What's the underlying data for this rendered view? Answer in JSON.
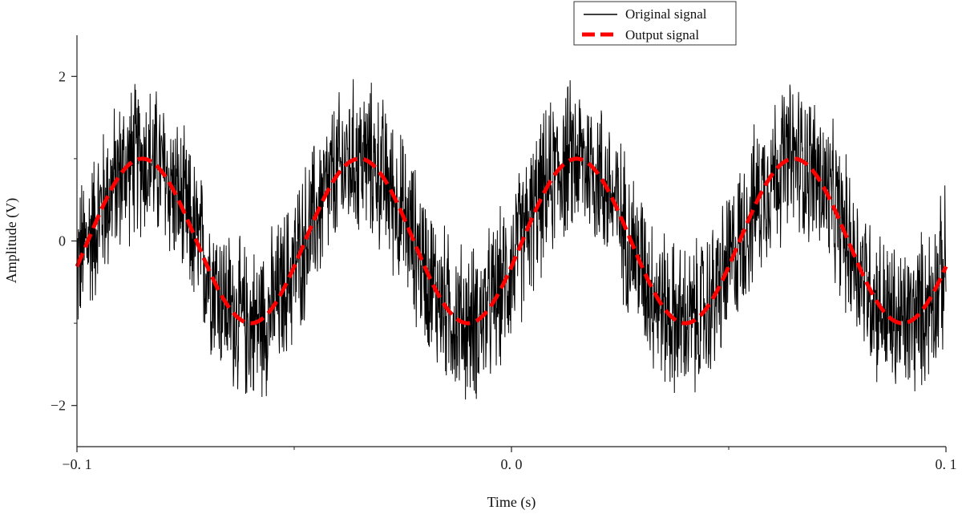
{
  "chart_data": {
    "type": "line",
    "title": "",
    "xlabel": "Time (s)",
    "ylabel": "Amplitude (V)",
    "xlim": [
      -0.1,
      0.1
    ],
    "ylim": [
      -2.5,
      2.5
    ],
    "x_ticks": [
      {
        "value": -0.1,
        "label": "−0. 1"
      },
      {
        "value": 0.0,
        "label": "0. 0"
      },
      {
        "value": 0.1,
        "label": "0. 1"
      }
    ],
    "x_minor_ticks": [
      -0.05,
      0.05
    ],
    "y_ticks": [
      {
        "value": 2,
        "label": "2"
      },
      {
        "value": 0,
        "label": "0"
      },
      {
        "value": -2,
        "label": "−2"
      }
    ],
    "y_minor_ticks": [
      1,
      -1
    ],
    "grid": false,
    "legend_position": "top-right",
    "series": [
      {
        "name": "Original signal",
        "color": "#000000",
        "style": "solid",
        "description_values": {
          "amplitude": 1.0,
          "frequency_hz": 20,
          "noise_peak": 1.1,
          "value_at_xmin": -0.31
        }
      },
      {
        "name": "Output signal",
        "color": "#ff0000",
        "style": "dashed",
        "x": [
          -0.1,
          -0.095,
          -0.09,
          -0.085,
          -0.08,
          -0.075,
          -0.07,
          -0.065,
          -0.06,
          -0.055,
          -0.05,
          -0.045,
          -0.04,
          -0.035,
          -0.03,
          -0.025,
          -0.02,
          -0.015,
          -0.01,
          -0.005,
          0.0,
          0.005,
          0.01,
          0.015,
          0.02,
          0.025,
          0.03,
          0.035,
          0.04,
          0.045,
          0.05,
          0.055,
          0.06,
          0.065,
          0.07,
          0.075,
          0.08,
          0.085,
          0.09,
          0.095,
          0.1
        ],
        "values": [
          -0.31,
          -0.81,
          -1.0,
          -0.81,
          -0.31,
          0.31,
          0.81,
          1.0,
          0.81,
          0.31,
          -0.31,
          -0.81,
          -1.0,
          -0.81,
          -0.31,
          0.31,
          0.81,
          1.0,
          0.81,
          0.31,
          -0.31,
          -0.81,
          -1.0,
          -0.81,
          -0.31,
          0.31,
          0.81,
          1.0,
          0.81,
          0.31,
          -0.31,
          -0.81,
          -1.0,
          -0.81,
          -0.31,
          0.31,
          0.81,
          1.0,
          0.81,
          0.31,
          -0.31
        ]
      }
    ]
  }
}
